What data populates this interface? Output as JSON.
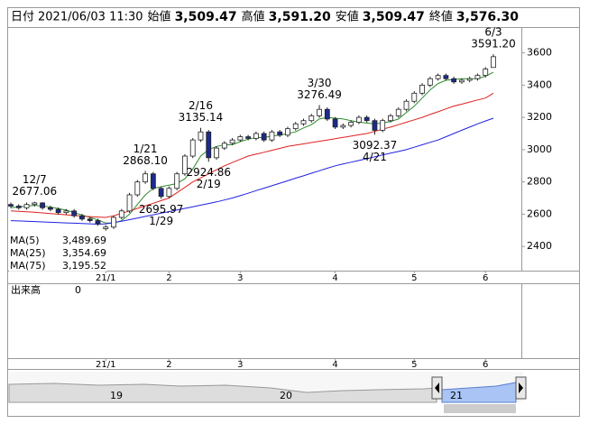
{
  "chart_data": {
    "type": "candlestick",
    "header": [
      {
        "label": "日付",
        "value": "2021/06/03 11:30",
        "color": "#000000"
      },
      {
        "label": "始値",
        "value": "3,509.47",
        "color": "#000000"
      },
      {
        "label": "高値",
        "value": "3,591.20",
        "color": "#e00000"
      },
      {
        "label": "安値",
        "value": "3,509.47",
        "color": "#1a8a1a"
      },
      {
        "label": "終値",
        "value": "3,576.30",
        "color": "#000000"
      }
    ],
    "categories": [
      null,
      null,
      null,
      null,
      null,
      null,
      null,
      null,
      null,
      null,
      null,
      null,
      "21/1",
      null,
      null,
      null,
      null,
      null,
      null,
      null,
      "2",
      null,
      null,
      null,
      null,
      null,
      null,
      null,
      null,
      "3",
      null,
      null,
      null,
      null,
      null,
      null,
      null,
      null,
      null,
      null,
      null,
      "4",
      null,
      null,
      null,
      null,
      null,
      null,
      null,
      null,
      null,
      "5",
      null,
      null,
      null,
      null,
      null,
      null,
      null,
      null,
      "6",
      null
    ],
    "candles": [
      [
        2660,
        2672,
        2638,
        2650
      ],
      [
        2650,
        2662,
        2628,
        2640
      ],
      [
        2640,
        2672,
        2628,
        2660
      ],
      [
        2660,
        2677.06,
        2648,
        2670
      ],
      [
        2670,
        2674,
        2628,
        2640
      ],
      [
        2640,
        2652,
        2618,
        2630
      ],
      [
        2630,
        2642,
        2598,
        2610
      ],
      [
        2610,
        2632,
        2598,
        2620
      ],
      [
        2620,
        2632,
        2578,
        2590
      ],
      [
        2590,
        2602,
        2558,
        2570
      ],
      [
        2570,
        2582,
        2548,
        2560
      ],
      [
        2560,
        2572,
        2528,
        2540
      ],
      [
        2510,
        2532,
        2498,
        2520
      ],
      [
        2520,
        2592,
        2508,
        2580
      ],
      [
        2580,
        2632,
        2568,
        2620
      ],
      [
        2620,
        2732,
        2608,
        2720
      ],
      [
        2720,
        2812,
        2708,
        2800
      ],
      [
        2800,
        2868.1,
        2788,
        2850
      ],
      [
        2850,
        2862,
        2748,
        2760
      ],
      [
        2760,
        2772,
        2695.97,
        2710
      ],
      [
        2710,
        2772,
        2698,
        2760
      ],
      [
        2760,
        2862,
        2748,
        2850
      ],
      [
        2850,
        2972,
        2838,
        2960
      ],
      [
        2960,
        3072,
        2948,
        3060
      ],
      [
        3060,
        3135.14,
        3048,
        3110
      ],
      [
        3110,
        3122,
        2924.86,
        2950
      ],
      [
        2950,
        3022,
        2938,
        3010
      ],
      [
        3010,
        3052,
        2998,
        3040
      ],
      [
        3040,
        3072,
        3028,
        3060
      ],
      [
        3060,
        3092,
        3048,
        3080
      ],
      [
        3080,
        3092,
        3058,
        3070
      ],
      [
        3070,
        3112,
        3058,
        3100
      ],
      [
        3100,
        3112,
        3048,
        3060
      ],
      [
        3060,
        3122,
        3048,
        3110
      ],
      [
        3110,
        3122,
        3078,
        3090
      ],
      [
        3090,
        3142,
        3078,
        3130
      ],
      [
        3130,
        3172,
        3118,
        3160
      ],
      [
        3160,
        3192,
        3148,
        3180
      ],
      [
        3180,
        3222,
        3168,
        3210
      ],
      [
        3210,
        3276.49,
        3198,
        3250
      ],
      [
        3250,
        3262,
        3178,
        3190
      ],
      [
        3190,
        3202,
        3128,
        3140
      ],
      [
        3140,
        3162,
        3128,
        3150
      ],
      [
        3150,
        3182,
        3138,
        3170
      ],
      [
        3170,
        3212,
        3158,
        3200
      ],
      [
        3200,
        3212,
        3168,
        3180
      ],
      [
        3180,
        3192,
        3092.37,
        3120
      ],
      [
        3120,
        3192,
        3108,
        3180
      ],
      [
        3180,
        3222,
        3168,
        3210
      ],
      [
        3210,
        3262,
        3198,
        3250
      ],
      [
        3250,
        3312,
        3238,
        3300
      ],
      [
        3300,
        3362,
        3288,
        3350
      ],
      [
        3350,
        3412,
        3338,
        3400
      ],
      [
        3400,
        3452,
        3388,
        3440
      ],
      [
        3440,
        3472,
        3428,
        3460
      ],
      [
        3460,
        3472,
        3428,
        3440
      ],
      [
        3440,
        3452,
        3408,
        3420
      ],
      [
        3420,
        3442,
        3408,
        3430
      ],
      [
        3430,
        3452,
        3418,
        3440
      ],
      [
        3440,
        3472,
        3428,
        3460
      ],
      [
        3460,
        3512,
        3448,
        3500
      ],
      [
        3509.47,
        3591.2,
        3509.47,
        3576.3
      ]
    ],
    "candle_colors": {
      "up": "#ffffff",
      "down": "#1c2a8c",
      "edge": "#222222"
    },
    "series": [
      {
        "name": "MA(5)",
        "color": "#2e8b2e",
        "current": "3,489.69",
        "values": [
          2640,
          2645,
          2650,
          2655,
          2650,
          2645,
          2635,
          2625,
          2610,
          2595,
          2580,
          2565,
          2545,
          2545,
          2560,
          2600,
          2660,
          2720,
          2760,
          2770,
          2780,
          2790,
          2820,
          2880,
          2960,
          3000,
          3020,
          3030,
          3030,
          3050,
          3065,
          3075,
          3075,
          3085,
          3090,
          3100,
          3110,
          3135,
          3155,
          3190,
          3200,
          3195,
          3190,
          3180,
          3170,
          3165,
          3160,
          3165,
          3175,
          3190,
          3230,
          3270,
          3320,
          3370,
          3410,
          3430,
          3435,
          3440,
          3440,
          3440,
          3455,
          3480
        ]
      },
      {
        "name": "MA(25)",
        "color": "#e02020",
        "current": "3,354.69",
        "values": [
          2620,
          2618,
          2615,
          2612,
          2608,
          2604,
          2600,
          2596,
          2592,
          2588,
          2585,
          2582,
          2580,
          2590,
          2605,
          2620,
          2636,
          2652,
          2668,
          2684,
          2700,
          2733,
          2766,
          2800,
          2825,
          2850,
          2875,
          2900,
          2920,
          2940,
          2960,
          2972,
          2984,
          2996,
          3008,
          3020,
          3028,
          3036,
          3044,
          3052,
          3060,
          3068,
          3076,
          3084,
          3092,
          3100,
          3113,
          3127,
          3140,
          3155,
          3170,
          3185,
          3200,
          3218,
          3235,
          3253,
          3270,
          3282,
          3295,
          3308,
          3320,
          3350
        ]
      },
      {
        "name": "MA(75)",
        "color": "#2020e0",
        "current": "3,195.52",
        "values": [
          2560,
          2558,
          2556,
          2554,
          2552,
          2550,
          2548,
          2546,
          2544,
          2542,
          2540,
          2538,
          2540,
          2548,
          2556,
          2566,
          2576,
          2586,
          2596,
          2606,
          2616,
          2626,
          2636,
          2646,
          2656,
          2666,
          2676,
          2688,
          2700,
          2715,
          2730,
          2746,
          2761,
          2776,
          2792,
          2807,
          2823,
          2838,
          2854,
          2869,
          2885,
          2900,
          2911,
          2922,
          2933,
          2944,
          2956,
          2967,
          2978,
          2989,
          3000,
          3015,
          3030,
          3045,
          3060,
          3080,
          3100,
          3120,
          3140,
          3160,
          3178,
          3195
        ]
      }
    ],
    "annotations": [
      {
        "date": "12/7",
        "value": 2677.06,
        "label": "2677.06"
      },
      {
        "date": "1/21",
        "value": 2868.1,
        "label": "2868.10"
      },
      {
        "date": "1/29",
        "value": 2695.97,
        "label": "2695.97"
      },
      {
        "date": "2/16",
        "value": 3135.14,
        "label": "3135.14"
      },
      {
        "date": "2/19",
        "value": 2924.86,
        "label": "2924.86"
      },
      {
        "date": "3/30",
        "value": 3276.49,
        "label": "3276.49"
      },
      {
        "date": "4/21",
        "value": 3092.37,
        "label": "3092.37"
      },
      {
        "date": "6/3",
        "value": 3591.2,
        "label": "3591.20"
      }
    ],
    "ylim": [
      2250,
      3760
    ],
    "yticks": [
      2400,
      2600,
      2800,
      3000,
      3200,
      3400,
      3600
    ],
    "grid": false,
    "volume": {
      "title": "出来高",
      "value": 0
    },
    "navigator": {
      "labels": [
        "19",
        "20",
        "21"
      ]
    }
  }
}
